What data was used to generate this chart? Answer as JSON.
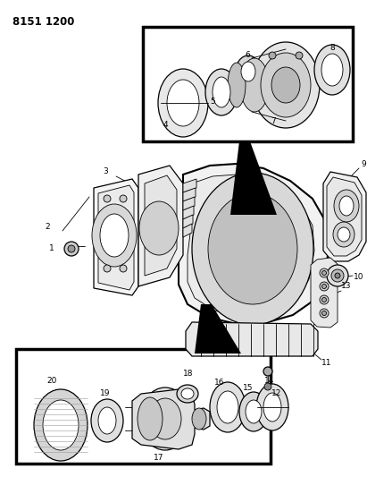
{
  "title": "8151 1200",
  "bg_color": "#ffffff",
  "line_color": "#000000",
  "fig_width": 4.11,
  "fig_height": 5.33,
  "dpi": 100
}
